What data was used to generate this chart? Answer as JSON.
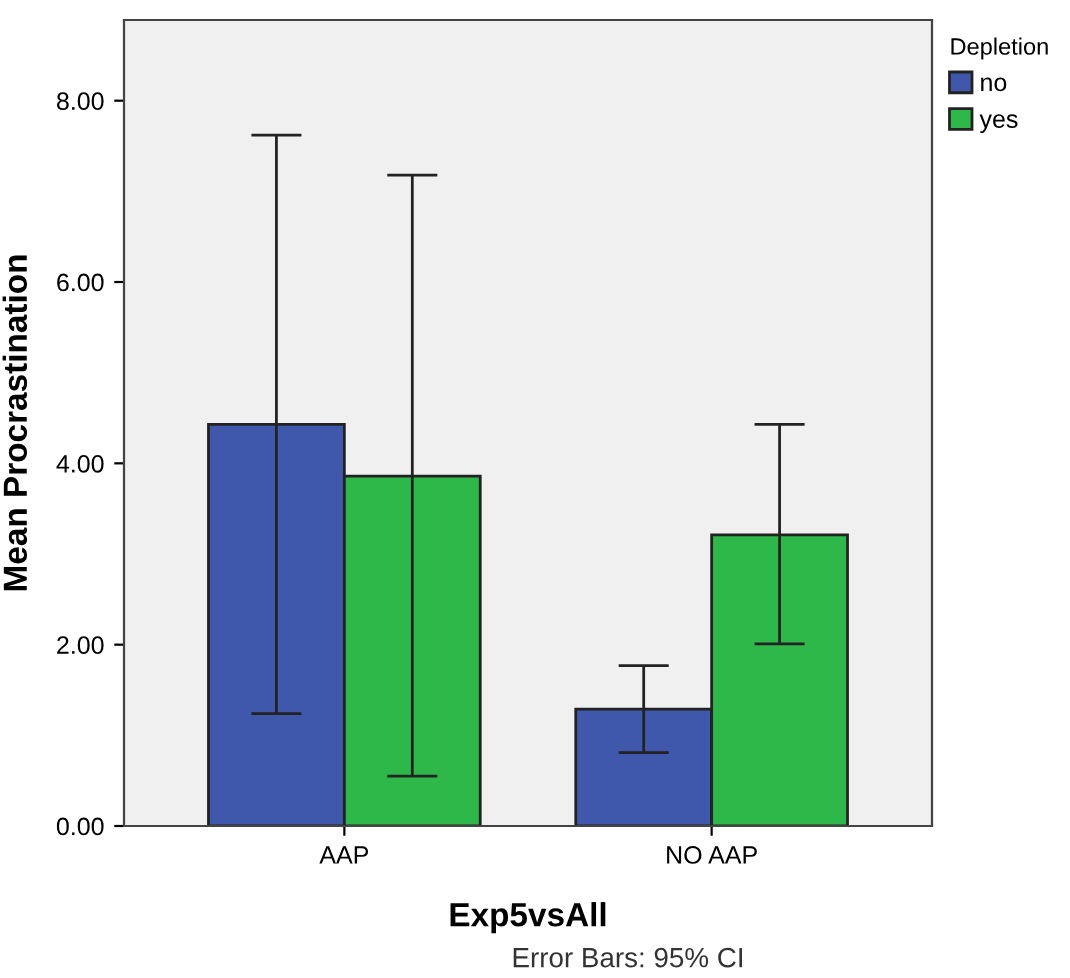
{
  "chart_data": {
    "type": "bar",
    "xlabel": "Exp5vsAll",
    "ylabel": "Mean Procrastination",
    "legend_title": "Depletion",
    "legend": "top right",
    "categories": [
      "AAP",
      "NO AAP"
    ],
    "series": [
      {
        "name": "no",
        "color": "#3f58ac",
        "values": [
          4.43,
          1.29
        ],
        "errors": [
          [
            1.24,
            7.62
          ],
          [
            0.81,
            1.77
          ]
        ]
      },
      {
        "name": "yes",
        "color": "#2fb84a",
        "values": [
          3.86,
          3.21
        ],
        "errors": [
          [
            0.55,
            7.18
          ],
          [
            2.01,
            4.43
          ]
        ]
      }
    ],
    "ylim": [
      0,
      8.89
    ],
    "yticks": [
      {
        "value": 0,
        "label": "0.00"
      },
      {
        "value": 2,
        "label": "2.00"
      },
      {
        "value": 4,
        "label": "4.00"
      },
      {
        "value": 6,
        "label": "6.00"
      },
      {
        "value": 8,
        "label": "8.00"
      }
    ],
    "grid": false,
    "annotations": [
      "Error Bars: 95% CI"
    ]
  }
}
